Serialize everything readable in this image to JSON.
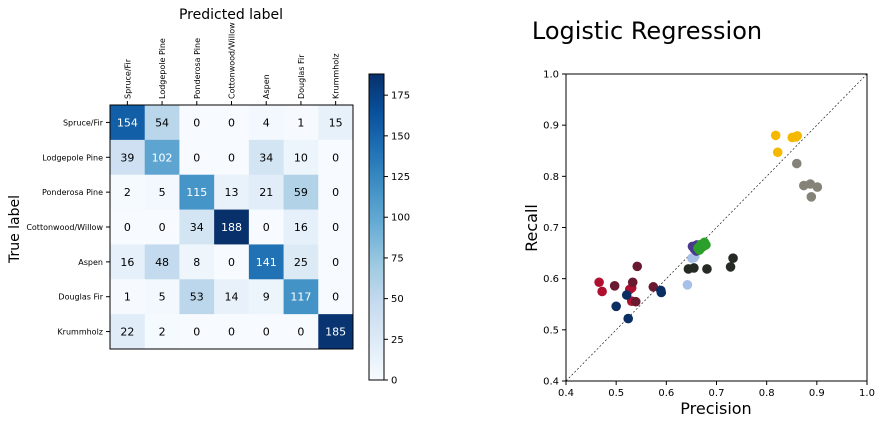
{
  "chart_data": [
    {
      "type": "heatmap",
      "title": "Predicted label",
      "xlabel": "Predicted label",
      "ylabel": "True label",
      "x_categories": [
        "Spruce/Fir",
        "Lodgepole Pine",
        "Ponderosa Pine",
        "Cottonwood/Willow",
        "Aspen",
        "Douglas Fir",
        "Krummholz"
      ],
      "y_categories": [
        "Spruce/Fir",
        "Lodgepole Pine",
        "Ponderosa Pine",
        "Cottonwood/Willow",
        "Aspen",
        "Douglas Fir",
        "Krummholz"
      ],
      "matrix": [
        [
          154,
          54,
          0,
          0,
          4,
          1,
          15
        ],
        [
          39,
          102,
          0,
          0,
          34,
          10,
          0
        ],
        [
          2,
          5,
          115,
          13,
          21,
          59,
          0
        ],
        [
          0,
          0,
          34,
          188,
          0,
          16,
          0
        ],
        [
          16,
          48,
          8,
          0,
          141,
          25,
          0
        ],
        [
          1,
          5,
          53,
          14,
          9,
          117,
          0
        ],
        [
          22,
          2,
          0,
          0,
          0,
          0,
          185
        ]
      ],
      "colorscale": "Blues",
      "colorbar_range": [
        0,
        188
      ],
      "colorbar_ticks": [
        0,
        25,
        50,
        75,
        100,
        125,
        150,
        175
      ]
    },
    {
      "type": "scatter",
      "title": "Logistic Regression",
      "xlabel": "Precision",
      "ylabel": "Recall",
      "xlim": [
        0.4,
        1.0
      ],
      "ylim": [
        0.4,
        1.0
      ],
      "xticks": [
        "0.4",
        "0.5",
        "0.6",
        "0.7",
        "0.8",
        "0.9",
        "1.0"
      ],
      "yticks": [
        "0.4",
        "0.5",
        "0.6",
        "0.7",
        "0.8",
        "0.9",
        "1.0"
      ],
      "reference_line": "diagonal",
      "series": [
        {
          "color": "#f5b800",
          "points": [
            [
              0.818,
              0.88
            ],
            [
              0.822,
              0.847
            ],
            [
              0.851,
              0.876
            ],
            [
              0.858,
              0.877
            ],
            [
              0.861,
              0.879
            ]
          ]
        },
        {
          "color": "#858278",
          "points": [
            [
              0.86,
              0.825
            ],
            [
              0.874,
              0.782
            ],
            [
              0.887,
              0.785
            ],
            [
              0.901,
              0.779
            ],
            [
              0.889,
              0.76
            ]
          ]
        },
        {
          "color": "#252a24",
          "points": [
            [
              0.644,
              0.619
            ],
            [
              0.655,
              0.621
            ],
            [
              0.681,
              0.619
            ],
            [
              0.728,
              0.623
            ],
            [
              0.733,
              0.64
            ]
          ]
        },
        {
          "color": "#b01030",
          "points": [
            [
              0.466,
              0.593
            ],
            [
              0.472,
              0.575
            ],
            [
              0.527,
              0.579
            ],
            [
              0.531,
              0.582
            ],
            [
              0.531,
              0.556
            ]
          ]
        },
        {
          "color": "#6a1a30",
          "points": [
            [
              0.497,
              0.586
            ],
            [
              0.533,
              0.593
            ],
            [
              0.542,
              0.624
            ],
            [
              0.539,
              0.555
            ],
            [
              0.574,
              0.584
            ]
          ]
        },
        {
          "color": "#0b2e63",
          "points": [
            [
              0.5,
              0.546
            ],
            [
              0.521,
              0.568
            ],
            [
              0.524,
              0.522
            ],
            [
              0.589,
              0.577
            ],
            [
              0.59,
              0.573
            ]
          ]
        },
        {
          "color": "#a8bfe8",
          "points": [
            [
              0.642,
              0.588
            ],
            [
              0.651,
              0.64
            ],
            [
              0.655,
              0.641
            ],
            [
              0.657,
              0.644
            ]
          ]
        },
        {
          "color": "#4b3a8c",
          "points": [
            [
              0.652,
              0.663
            ],
            [
              0.656,
              0.658
            ],
            [
              0.66,
              0.654
            ],
            [
              0.661,
              0.666
            ]
          ]
        },
        {
          "color": "#2aa02a",
          "points": [
            [
              0.663,
              0.66
            ],
            [
              0.669,
              0.667
            ],
            [
              0.672,
              0.662
            ],
            [
              0.676,
              0.671
            ],
            [
              0.679,
              0.666
            ],
            [
              0.666,
              0.656
            ]
          ]
        }
      ]
    }
  ]
}
